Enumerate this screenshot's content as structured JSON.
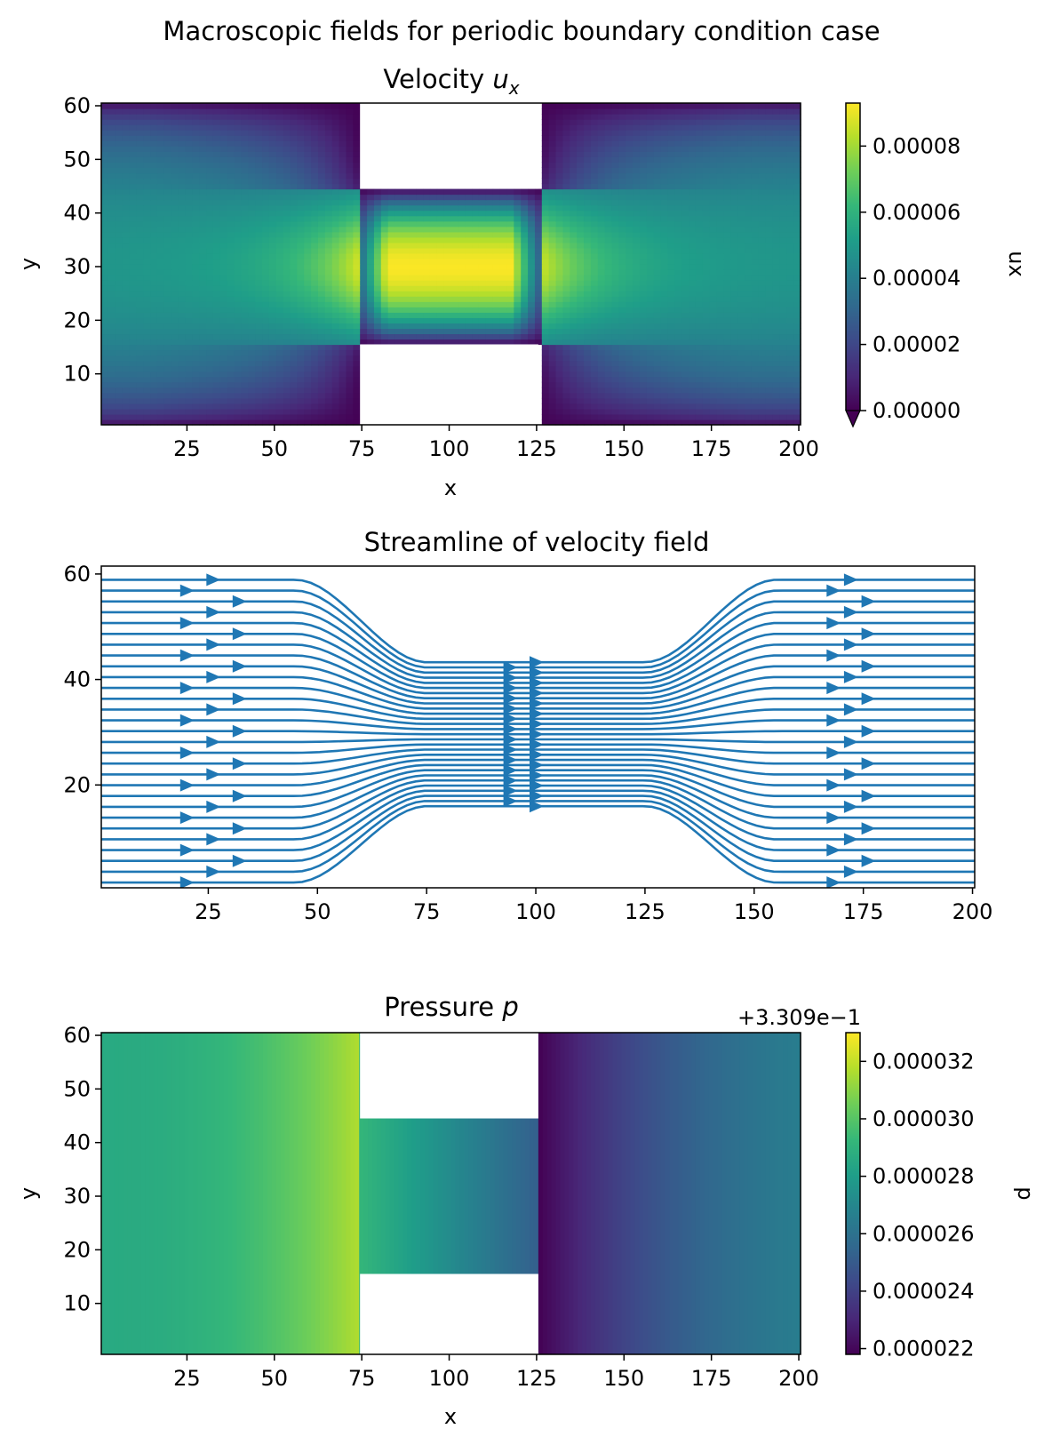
{
  "suptitle": "Macroscopic fields for periodic boundary condition case",
  "colors": {
    "viridis": [
      "#440154",
      "#482878",
      "#3e4989",
      "#31688e",
      "#26828e",
      "#1f9e89",
      "#35b779",
      "#6ece58",
      "#b5de2b",
      "#fde725"
    ],
    "stream": "#1f77b4",
    "obstacle": "#ffffff"
  },
  "chart_data": [
    {
      "type": "heatmap",
      "title_text": "Velocity ",
      "title_math": "u",
      "title_sub": "x",
      "xlabel": "x",
      "ylabel": "y",
      "xlim": [
        0.5,
        200.5
      ],
      "ylim": [
        0.5,
        60.5
      ],
      "xticks": [
        25,
        50,
        75,
        100,
        125,
        150,
        175,
        200
      ],
      "yticks": [
        10,
        20,
        30,
        40,
        50,
        60
      ],
      "obstacles": [
        {
          "x": [
            74.5,
            125.5
          ],
          "y": [
            44.5,
            60.5
          ]
        },
        {
          "x": [
            74.5,
            125.5
          ],
          "y": [
            0.5,
            15.5
          ]
        }
      ],
      "colorbar": {
        "label": "ux",
        "range": [
          0.0,
          9.3e-05
        ],
        "ticks": [
          "0.00000",
          "0.00002",
          "0.00004",
          "0.00006",
          "0.00008"
        ],
        "tick_values": [
          0.0,
          2e-05,
          4e-05,
          6e-05,
          8e-05
        ],
        "extend": "min",
        "offset_text": ""
      }
    },
    {
      "type": "streamline",
      "title": "Streamline of velocity field",
      "xlim": [
        0.5,
        200.5
      ],
      "ylim": [
        0.5,
        61.5
      ],
      "xticks": [
        25,
        50,
        75,
        100,
        125,
        150,
        175,
        200
      ],
      "yticks": [
        20,
        40,
        60
      ],
      "channel_x": [
        74.5,
        125.5
      ],
      "channel_y": [
        15.5,
        44.5
      ]
    },
    {
      "type": "heatmap",
      "title_text": "Pressure ",
      "title_math": "p",
      "xlabel": "x",
      "ylabel": "y",
      "xlim": [
        0.5,
        200.5
      ],
      "ylim": [
        0.5,
        60.5
      ],
      "xticks": [
        25,
        50,
        75,
        100,
        125,
        150,
        175,
        200
      ],
      "yticks": [
        10,
        20,
        30,
        40,
        50,
        60
      ],
      "obstacles": [
        {
          "x": [
            74.5,
            125.5
          ],
          "y": [
            44.5,
            60.5
          ]
        },
        {
          "x": [
            74.5,
            125.5
          ],
          "y": [
            0.5,
            15.5
          ]
        }
      ],
      "colorbar": {
        "label": "p",
        "range": [
          2.18e-05,
          3.3e-05
        ],
        "ticks": [
          "0.000022",
          "0.000024",
          "0.000026",
          "0.000028",
          "0.000030",
          "0.000032"
        ],
        "tick_values": [
          2.2e-05,
          2.4e-05,
          2.6e-05,
          2.8e-05,
          3e-05,
          3.2e-05
        ],
        "extend": "none",
        "offset_text": "+3.309e−1"
      }
    }
  ]
}
